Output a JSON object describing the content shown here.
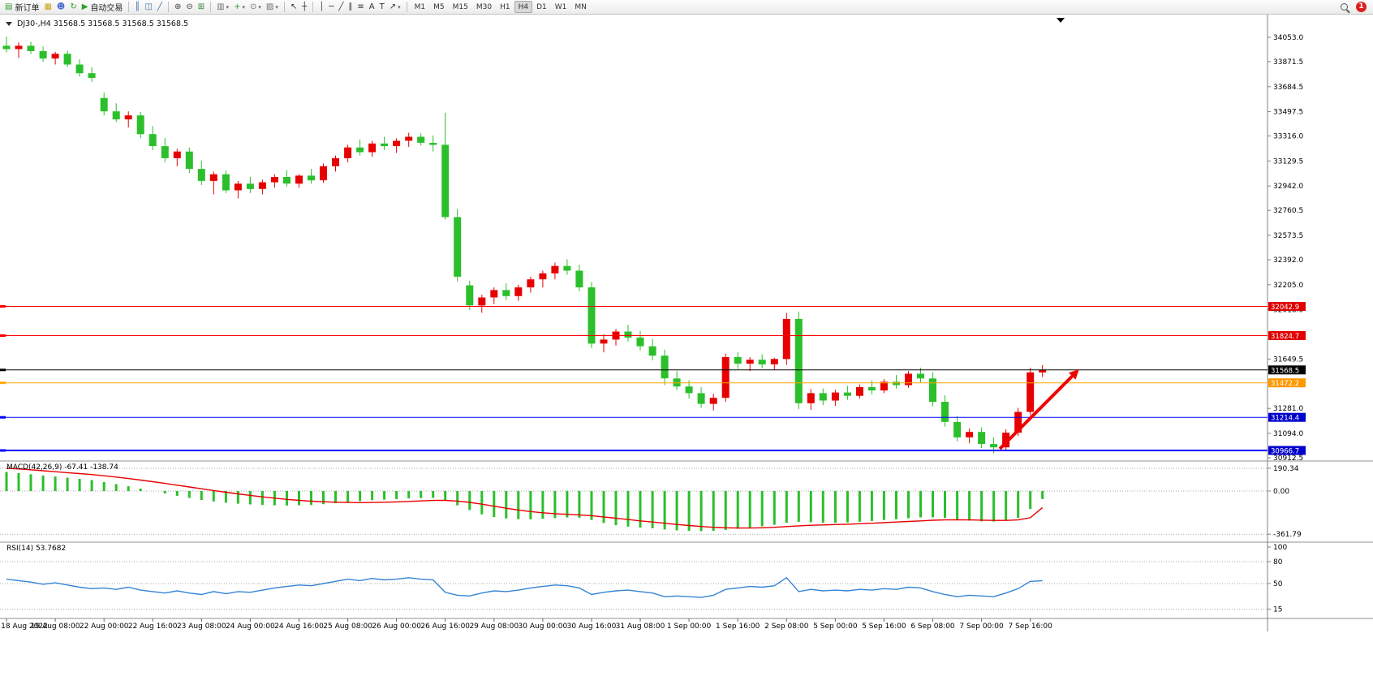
{
  "toolbar": {
    "groups": [
      {
        "items": [
          {
            "name": "new-order-button",
            "glyph": "▤",
            "glyph_color": "#2e9e2e",
            "label": "新订单"
          },
          {
            "name": "charts-button",
            "glyph": "▦",
            "glyph_color": "#c8a41a"
          },
          {
            "name": "market-watch-button",
            "glyph": "☻",
            "glyph_color": "#4a6fd0"
          },
          {
            "name": "refresh-button",
            "glyph": "↻",
            "glyph_color": "#2e9e2e"
          },
          {
            "name": "auto-trading-button",
            "glyph": "▶",
            "glyph_color": "#2e9e2e",
            "label": "自动交易"
          }
        ]
      },
      {
        "items": [
          {
            "name": "bar-chart-mode-button",
            "glyph": "║",
            "glyph_color": "#3a6ea5"
          },
          {
            "name": "candlestick-mode-button",
            "glyph": "◫",
            "glyph_color": "#3a6ea5"
          },
          {
            "name": "line-chart-mode-button",
            "glyph": "╱",
            "glyph_color": "#3a6ea5"
          }
        ]
      },
      {
        "items": [
          {
            "name": "zoom-in-button",
            "glyph": "⊕",
            "glyph_color": "#444444"
          },
          {
            "name": "zoom-out-button",
            "glyph": "⊖",
            "glyph_color": "#444444"
          },
          {
            "name": "tile-windows-button",
            "glyph": "⊞",
            "glyph_color": "#2e7e2e"
          }
        ]
      },
      {
        "items": [
          {
            "name": "new-chart-button",
            "glyph": "▥",
            "glyph_color": "#707070",
            "dropdown": true
          },
          {
            "name": "indicators-button",
            "glyph": "+",
            "glyph_color": "#2e9e2e",
            "dropdown": true
          },
          {
            "name": "periods-button",
            "glyph": "⊙",
            "glyph_color": "#707070",
            "dropdown": true
          },
          {
            "name": "templates-button",
            "glyph": "▨",
            "glyph_color": "#707070",
            "dropdown": true
          }
        ]
      },
      {
        "items": [
          {
            "name": "cursor-button",
            "glyph": "↖",
            "glyph_color": "#333333"
          },
          {
            "name": "crosshair-button",
            "glyph": "┼",
            "glyph_color": "#333333"
          }
        ]
      },
      {
        "items": [
          {
            "name": "vertical-line-button",
            "glyph": "│",
            "glyph_color": "#333333"
          },
          {
            "name": "horizontal-line-button",
            "glyph": "─",
            "glyph_color": "#333333"
          },
          {
            "name": "trendline-button",
            "glyph": "╱",
            "glyph_color": "#333333"
          },
          {
            "name": "channel-button",
            "glyph": "∥",
            "glyph_color": "#333333"
          },
          {
            "name": "fibonacci-button",
            "glyph": "≡",
            "glyph_color": "#333333"
          },
          {
            "name": "text-button",
            "glyph": "A",
            "glyph_color": "#333333"
          },
          {
            "name": "text-label-button",
            "glyph": "T",
            "glyph_color": "#333333"
          },
          {
            "name": "arrows-button",
            "glyph": "↗",
            "glyph_color": "#333333",
            "dropdown": true
          }
        ]
      }
    ],
    "timeframes": [
      "M1",
      "M5",
      "M15",
      "M30",
      "H1",
      "H4",
      "D1",
      "W1",
      "MN"
    ],
    "active_timeframe": "H4",
    "notification_count": "1"
  },
  "chart": {
    "title_text": "DJ30-,H4 31568.5 31568.5 31568.5 31568.5",
    "symbol": "DJ30-",
    "period": "H4"
  },
  "colors": {
    "candle_up": "#e60000",
    "candle_down": "#2bbf2b",
    "macd_hist": "#2bbf2b",
    "macd_signal": "#e80000",
    "rsi": "#3584d6",
    "axis_line": "#808080"
  },
  "chart_data": {
    "type": "candlestick",
    "symbol": "DJ30-",
    "timeframe": "H4",
    "candles": [
      [
        33990,
        34058,
        33940,
        33965
      ],
      [
        33965,
        34015,
        33900,
        33990
      ],
      [
        33990,
        34020,
        33930,
        33950
      ],
      [
        33950,
        33985,
        33870,
        33895
      ],
      [
        33895,
        33945,
        33850,
        33930
      ],
      [
        33930,
        33955,
        33830,
        33850
      ],
      [
        33850,
        33890,
        33760,
        33785
      ],
      [
        33785,
        33830,
        33720,
        33750
      ],
      [
        33600,
        33640,
        33470,
        33500
      ],
      [
        33500,
        33560,
        33420,
        33440
      ],
      [
        33440,
        33500,
        33380,
        33470
      ],
      [
        33470,
        33495,
        33300,
        33330
      ],
      [
        33330,
        33390,
        33210,
        33240
      ],
      [
        33240,
        33300,
        33120,
        33150
      ],
      [
        33150,
        33220,
        33090,
        33200
      ],
      [
        33200,
        33230,
        33040,
        33070
      ],
      [
        33070,
        33130,
        32950,
        32980
      ],
      [
        32980,
        33050,
        32880,
        33030
      ],
      [
        33030,
        33060,
        32890,
        32910
      ],
      [
        32910,
        32980,
        32850,
        32960
      ],
      [
        32960,
        33010,
        32890,
        32920
      ],
      [
        32920,
        32990,
        32880,
        32970
      ],
      [
        32970,
        33030,
        32930,
        33010
      ],
      [
        33010,
        33060,
        32940,
        32960
      ],
      [
        32960,
        33030,
        32930,
        33020
      ],
      [
        33020,
        33070,
        32960,
        32985
      ],
      [
        32985,
        33110,
        32965,
        33090
      ],
      [
        33090,
        33170,
        33050,
        33150
      ],
      [
        33150,
        33250,
        33120,
        33230
      ],
      [
        33230,
        33290,
        33170,
        33195
      ],
      [
        33195,
        33280,
        33160,
        33260
      ],
      [
        33260,
        33310,
        33210,
        33240
      ],
      [
        33240,
        33300,
        33190,
        33280
      ],
      [
        33280,
        33340,
        33235,
        33310
      ],
      [
        33310,
        33335,
        33245,
        33265
      ],
      [
        33265,
        33320,
        33200,
        33250
      ],
      [
        33250,
        33490,
        32690,
        32710
      ],
      [
        32710,
        32770,
        32230,
        32265
      ],
      [
        32200,
        32235,
        32015,
        32050
      ],
      [
        32050,
        32130,
        31995,
        32110
      ],
      [
        32110,
        32185,
        32060,
        32165
      ],
      [
        32165,
        32215,
        32090,
        32120
      ],
      [
        32120,
        32205,
        32085,
        32185
      ],
      [
        32185,
        32265,
        32145,
        32245
      ],
      [
        32245,
        32310,
        32185,
        32290
      ],
      [
        32290,
        32370,
        32245,
        32345
      ],
      [
        32345,
        32395,
        32280,
        32310
      ],
      [
        32310,
        32355,
        32155,
        32185
      ],
      [
        32185,
        32225,
        31730,
        31765
      ],
      [
        31765,
        31835,
        31700,
        31795
      ],
      [
        31795,
        31875,
        31750,
        31855
      ],
      [
        31855,
        31905,
        31780,
        31810
      ],
      [
        31810,
        31860,
        31715,
        31745
      ],
      [
        31745,
        31800,
        31640,
        31675
      ],
      [
        31675,
        31720,
        31455,
        31505
      ],
      [
        31505,
        31560,
        31420,
        31445
      ],
      [
        31445,
        31490,
        31355,
        31395
      ],
      [
        31395,
        31440,
        31285,
        31315
      ],
      [
        31315,
        31390,
        31265,
        31360
      ],
      [
        31360,
        31690,
        31330,
        31665
      ],
      [
        31665,
        31700,
        31575,
        31615
      ],
      [
        31615,
        31665,
        31560,
        31645
      ],
      [
        31645,
        31685,
        31580,
        31610
      ],
      [
        31610,
        31660,
        31570,
        31650
      ],
      [
        31650,
        31995,
        31605,
        31950
      ],
      [
        31950,
        32005,
        31275,
        31320
      ],
      [
        31320,
        31425,
        31270,
        31395
      ],
      [
        31395,
        31430,
        31305,
        31340
      ],
      [
        31340,
        31420,
        31300,
        31400
      ],
      [
        31400,
        31450,
        31345,
        31375
      ],
      [
        31375,
        31460,
        31355,
        31440
      ],
      [
        31440,
        31490,
        31385,
        31415
      ],
      [
        31415,
        31500,
        31395,
        31480
      ],
      [
        31480,
        31530,
        31430,
        31455
      ],
      [
        31455,
        31560,
        31435,
        31540
      ],
      [
        31540,
        31585,
        31475,
        31505
      ],
      [
        31505,
        31550,
        31295,
        31330
      ],
      [
        31330,
        31380,
        31145,
        31180
      ],
      [
        31180,
        31225,
        31035,
        31065
      ],
      [
        31065,
        31130,
        31020,
        31105
      ],
      [
        31105,
        31140,
        30985,
        31015
      ],
      [
        31015,
        31065,
        30945,
        30990
      ],
      [
        30990,
        31125,
        30960,
        31100
      ],
      [
        31100,
        31285,
        31075,
        31255
      ],
      [
        31255,
        31585,
        31230,
        31550
      ],
      [
        31550,
        31605,
        31515,
        31568.5
      ]
    ],
    "x_labels": [
      {
        "bar": 0,
        "text": "18 Aug 2022"
      },
      {
        "bar": 4,
        "text": "19 Aug 08:00"
      },
      {
        "bar": 8,
        "text": "22 Aug 00:00"
      },
      {
        "bar": 12,
        "text": "22 Aug 16:00"
      },
      {
        "bar": 16,
        "text": "23 Aug 08:00"
      },
      {
        "bar": 20,
        "text": "24 Aug 00:00"
      },
      {
        "bar": 24,
        "text": "24 Aug 16:00"
      },
      {
        "bar": 28,
        "text": "25 Aug 08:00"
      },
      {
        "bar": 32,
        "text": "26 Aug 00:00"
      },
      {
        "bar": 36,
        "text": "26 Aug 16:00"
      },
      {
        "bar": 40,
        "text": "29 Aug 08:00"
      },
      {
        "bar": 44,
        "text": "30 Aug 00:00"
      },
      {
        "bar": 48,
        "text": "30 Aug 16:00"
      },
      {
        "bar": 52,
        "text": "31 Aug 08:00"
      },
      {
        "bar": 56,
        "text": "1 Sep 00:00"
      },
      {
        "bar": 60,
        "text": "1 Sep 16:00"
      },
      {
        "bar": 64,
        "text": "2 Sep 08:00"
      },
      {
        "bar": 68,
        "text": "5 Sep 00:00"
      },
      {
        "bar": 72,
        "text": "5 Sep 16:00"
      },
      {
        "bar": 76,
        "text": "6 Sep 08:00"
      },
      {
        "bar": 80,
        "text": "7 Sep 00:00"
      },
      {
        "bar": 84,
        "text": "7 Sep 16:00"
      }
    ],
    "price_axis_ticks": [
      "34053.0",
      "33871.5",
      "33684.5",
      "33497.5",
      "33316.0",
      "33129.5",
      "32942.0",
      "32760.5",
      "32573.5",
      "32392.0",
      "32205.0",
      "32018.0",
      "31649.5",
      "31281.0",
      "31094.0",
      "30912.5"
    ],
    "hlines": [
      {
        "price": 32042.9,
        "text": "32042.9",
        "line": "#ff0000",
        "badge": "#e00000",
        "width": 1
      },
      {
        "price": 31824.7,
        "text": "31824.7",
        "line": "#ff0000",
        "badge": "#e00000",
        "width": 1
      },
      {
        "price": 31568.5,
        "text": "31568.5",
        "line": "#000000",
        "badge": "#000000",
        "width": 1
      },
      {
        "price": 31472.2,
        "text": "31472.2",
        "line": "#ffa500",
        "badge": "#ff9900",
        "width": 1
      },
      {
        "price": 31214.4,
        "text": "31214.4",
        "line": "#0000ff",
        "badge": "#0000cc",
        "width": 1
      },
      {
        "price": 30966.7,
        "text": "30966.7",
        "line": "#0000ff",
        "badge": "#0000cc",
        "width": 2
      }
    ],
    "arrow": {
      "bar_from": 81.5,
      "price_from": 30979,
      "bar_to": 88.0,
      "price_to": 31573,
      "color": "#f00000"
    },
    "indicators": [
      {
        "type": "MACD",
        "label": "MACD(42,26,9) -67.41 -138.74",
        "params": "42,26,9",
        "value_main": -67.41,
        "value_signal": -138.74,
        "axis_ticks": [
          "190.34",
          "0.00",
          "-361.79"
        ],
        "histogram": [
          160,
          150,
          140,
          130,
          122,
          112,
          102,
          92,
          75,
          58,
          40,
          20,
          0,
          -20,
          -40,
          -58,
          -75,
          -88,
          -98,
          -106,
          -112,
          -117,
          -120,
          -121,
          -120,
          -117,
          -110,
          -101,
          -92,
          -84,
          -77,
          -72,
          -67,
          -62,
          -59,
          -57,
          -75,
          -120,
          -160,
          -195,
          -218,
          -230,
          -236,
          -237,
          -233,
          -227,
          -222,
          -224,
          -242,
          -268,
          -286,
          -298,
          -306,
          -312,
          -322,
          -330,
          -334,
          -336,
          -334,
          -326,
          -316,
          -306,
          -295,
          -283,
          -266,
          -258,
          -262,
          -266,
          -266,
          -263,
          -258,
          -251,
          -243,
          -236,
          -228,
          -221,
          -220,
          -226,
          -238,
          -248,
          -254,
          -256,
          -248,
          -225,
          -150,
          -67.41
        ],
        "signal": [
          190,
          185,
          178,
          170,
          162,
          154,
          146,
          138,
          128,
          117,
          105,
          92,
          78,
          64,
          49,
          34,
          19,
          4,
          -10,
          -24,
          -37,
          -49,
          -60,
          -70,
          -78,
          -85,
          -90,
          -94,
          -96,
          -97,
          -96,
          -94,
          -91,
          -87,
          -83,
          -79,
          -78,
          -84,
          -95,
          -110,
          -127,
          -144,
          -159,
          -172,
          -182,
          -190,
          -195,
          -200,
          -207,
          -217,
          -228,
          -239,
          -250,
          -260,
          -270,
          -280,
          -289,
          -297,
          -304,
          -308,
          -310,
          -310,
          -308,
          -304,
          -298,
          -292,
          -287,
          -284,
          -281,
          -278,
          -274,
          -270,
          -265,
          -260,
          -255,
          -250,
          -245,
          -242,
          -241,
          -242,
          -244,
          -246,
          -246,
          -242,
          -224,
          -138.74
        ]
      },
      {
        "type": "RSI",
        "label": "RSI(14) 53.7682",
        "params": "14",
        "value": 53.7682,
        "axis_ticks": [
          "100",
          "80",
          "50",
          "15"
        ],
        "levels": [
          80,
          50,
          15
        ],
        "values": [
          56,
          54,
          52,
          49,
          51,
          48,
          45,
          43,
          44,
          42,
          45,
          41,
          39,
          37,
          40,
          37,
          35,
          39,
          36,
          39,
          38,
          41,
          44,
          46,
          48,
          47,
          50,
          53,
          56,
          54,
          57,
          55,
          56,
          58,
          56,
          55,
          38,
          34,
          33,
          37,
          40,
          39,
          41,
          44,
          46,
          48,
          47,
          44,
          35,
          38,
          40,
          41,
          39,
          37,
          32,
          33,
          32,
          31,
          34,
          42,
          44,
          46,
          45,
          47,
          58,
          39,
          42,
          40,
          41,
          40,
          42,
          41,
          43,
          42,
          45,
          44,
          39,
          35,
          32,
          34,
          33,
          32,
          37,
          43,
          53,
          53.7682
        ]
      }
    ]
  }
}
